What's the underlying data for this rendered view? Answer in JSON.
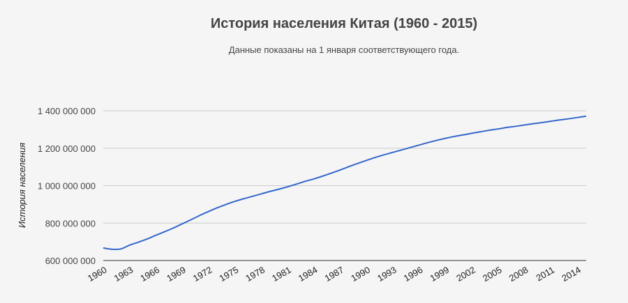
{
  "chart_data": {
    "type": "line",
    "title": "История населения Китая (1960 - 2015)",
    "subtitle": "Данные показаны на 1 января соответствующего года.",
    "xlabel": "",
    "ylabel": "История населения",
    "xlim": [
      1960,
      2015
    ],
    "ylim": [
      600000000,
      1400000000
    ],
    "grid": true,
    "legend": "none",
    "y_ticks": [
      {
        "value": 600000000,
        "label": "600 000 000"
      },
      {
        "value": 800000000,
        "label": "800 000 000"
      },
      {
        "value": 1000000000,
        "label": "1 000 000 000"
      },
      {
        "value": 1200000000,
        "label": "1 200 000 000"
      },
      {
        "value": 1400000000,
        "label": "1 400 000 000"
      }
    ],
    "x_ticks": [
      {
        "value": 1960,
        "label": "1960"
      },
      {
        "value": 1963,
        "label": "1963"
      },
      {
        "value": 1966,
        "label": "1966"
      },
      {
        "value": 1969,
        "label": "1969"
      },
      {
        "value": 1972,
        "label": "1972"
      },
      {
        "value": 1975,
        "label": "1975"
      },
      {
        "value": 1978,
        "label": "1978"
      },
      {
        "value": 1981,
        "label": "1981"
      },
      {
        "value": 1984,
        "label": "1984"
      },
      {
        "value": 1987,
        "label": "1987"
      },
      {
        "value": 1990,
        "label": "1990"
      },
      {
        "value": 1993,
        "label": "1993"
      },
      {
        "value": 1996,
        "label": "1996"
      },
      {
        "value": 1999,
        "label": "1999"
      },
      {
        "value": 2002,
        "label": "2002"
      },
      {
        "value": 2005,
        "label": "2005"
      },
      {
        "value": 2008,
        "label": "2008"
      },
      {
        "value": 2011,
        "label": "2011"
      },
      {
        "value": 2014,
        "label": "2014"
      }
    ],
    "series": [
      {
        "name": "История населения",
        "color": "#3366cc",
        "x": [
          1960,
          1961,
          1962,
          1963,
          1964,
          1965,
          1966,
          1967,
          1968,
          1969,
          1970,
          1971,
          1972,
          1973,
          1974,
          1975,
          1976,
          1977,
          1978,
          1979,
          1980,
          1981,
          1982,
          1983,
          1984,
          1985,
          1986,
          1987,
          1988,
          1989,
          1990,
          1991,
          1992,
          1993,
          1994,
          1995,
          1996,
          1997,
          1998,
          1999,
          2000,
          2001,
          2002,
          2003,
          2004,
          2005,
          2006,
          2007,
          2008,
          2009,
          2010,
          2011,
          2012,
          2013,
          2014,
          2015
        ],
        "values": [
          667000000,
          660000000,
          662000000,
          682000000,
          698000000,
          715000000,
          735000000,
          754000000,
          774000000,
          796000000,
          818000000,
          841000000,
          862000000,
          882000000,
          900000000,
          916000000,
          930000000,
          943000000,
          956000000,
          969000000,
          981000000,
          994000000,
          1008000000,
          1023000000,
          1036000000,
          1051000000,
          1067000000,
          1084000000,
          1102000000,
          1119000000,
          1135000000,
          1151000000,
          1165000000,
          1178000000,
          1191000000,
          1204000000,
          1217000000,
          1230000000,
          1242000000,
          1253000000,
          1263000000,
          1271000000,
          1280000000,
          1288000000,
          1296000000,
          1303000000,
          1311000000,
          1317000000,
          1324000000,
          1331000000,
          1337000000,
          1344000000,
          1351000000,
          1357000000,
          1364000000,
          1371000000
        ]
      }
    ]
  }
}
